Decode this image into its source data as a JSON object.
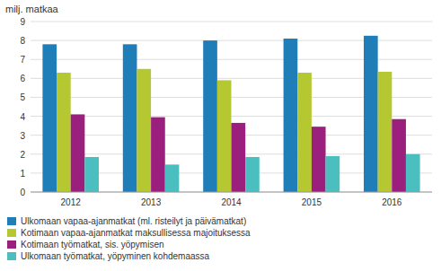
{
  "chart_data": {
    "type": "bar",
    "ylabel": "milj. matkaa",
    "categories": [
      "2012",
      "2013",
      "2014",
      "2015",
      "2016"
    ],
    "series": [
      {
        "name": "Ulkomaan vapaa-ajanmatkat (ml. risteilyt ja päivämatkat)",
        "color": "#1f7eb8",
        "values": [
          7.8,
          7.8,
          8.0,
          8.1,
          8.25
        ]
      },
      {
        "name": "Kotimaan vapaa-ajanmatkat maksullisessa majoituksessa",
        "color": "#b5c832",
        "values": [
          6.3,
          6.5,
          5.9,
          6.3,
          6.35
        ]
      },
      {
        "name": "Kotimaan työmatkat, sis. yöpymisen",
        "color": "#9b1f7d",
        "values": [
          4.1,
          3.95,
          3.65,
          3.45,
          3.85
        ]
      },
      {
        "name": "Ulkomaan työmatkat, yöpyminen kohdemaassa",
        "color": "#4bbfbf",
        "values": [
          1.85,
          1.45,
          1.85,
          1.9,
          2.0
        ]
      }
    ],
    "ylim": [
      0,
      9
    ],
    "yticks": [
      0,
      1,
      2,
      3,
      4,
      5,
      6,
      7,
      8,
      9
    ],
    "grid": true,
    "legend": "bottom"
  }
}
